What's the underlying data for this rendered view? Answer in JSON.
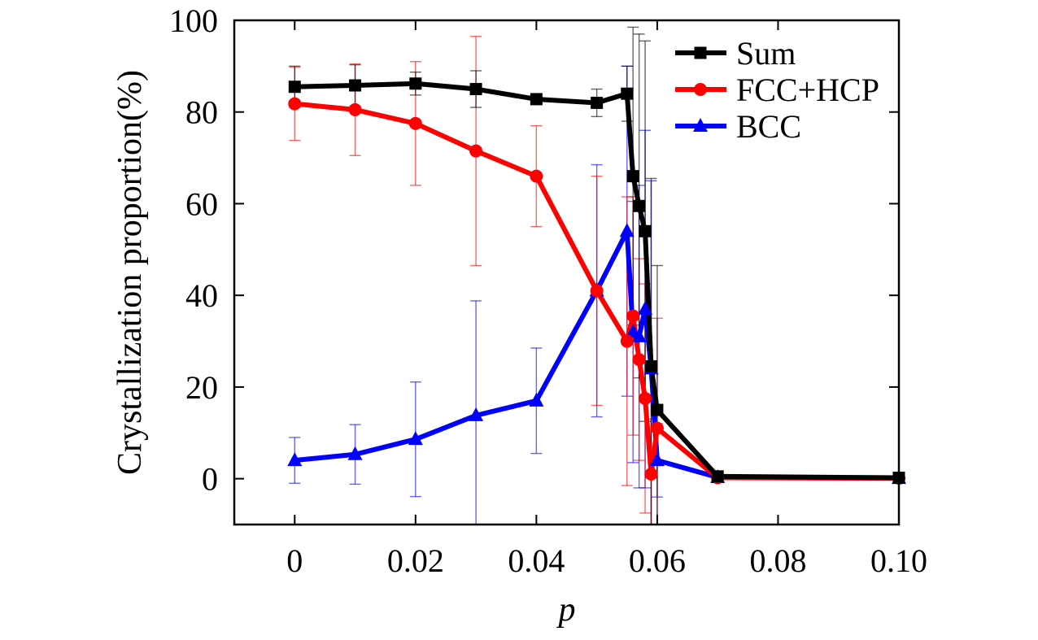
{
  "chart_data": {
    "type": "line",
    "title": "",
    "xlabel": "p",
    "ylabel": "Crystallization proportion(%)",
    "xlim": [
      -0.01,
      0.1
    ],
    "ylim": [
      -10,
      100
    ],
    "xticks": [
      0,
      0.02,
      0.04,
      0.06,
      0.08,
      0.1
    ],
    "xtick_labels": [
      "0",
      "0.02",
      "0.04",
      "0.06",
      "0.08",
      "0.10"
    ],
    "yticks": [
      0,
      20,
      40,
      60,
      80,
      100
    ],
    "ytick_labels": [
      "0",
      "20",
      "40",
      "60",
      "80",
      "100"
    ],
    "grid": false,
    "legend_position": "top-right",
    "series": [
      {
        "name": "Sum",
        "color": "#000000",
        "marker": "square",
        "x": [
          0,
          0.01,
          0.02,
          0.03,
          0.04,
          0.05,
          0.055,
          0.056,
          0.057,
          0.058,
          0.059,
          0.06,
          0.07,
          0.1
        ],
        "y": [
          85.5,
          85.8,
          86.2,
          85.0,
          82.8,
          82.0,
          84.0,
          66.0,
          59.5,
          54.0,
          24.5,
          15.0,
          0.5,
          0.2
        ],
        "err": [
          4.5,
          4.5,
          2.5,
          4.0,
          1.0,
          3.0,
          6.0,
          32.5,
          37.5,
          41.5,
          41.0,
          31.5,
          0.5,
          0.3
        ]
      },
      {
        "name": "FCC+HCP",
        "color": "#ff0000",
        "marker": "circle",
        "x": [
          0,
          0.01,
          0.02,
          0.03,
          0.04,
          0.05,
          0.055,
          0.056,
          0.057,
          0.058,
          0.059,
          0.06,
          0.07,
          0.1
        ],
        "y": [
          81.8,
          80.5,
          77.5,
          71.5,
          66.0,
          41.0,
          30.0,
          35.5,
          26.0,
          17.5,
          1.0,
          11.0,
          0.2,
          0.1
        ],
        "err": [
          8.0,
          10.0,
          13.5,
          25.0,
          11.0,
          25.0,
          31.5,
          26.0,
          22.0,
          25.0,
          12.0,
          24.0,
          0.3,
          0.2
        ]
      },
      {
        "name": "BCC",
        "color": "#0000ff",
        "marker": "triangle",
        "x": [
          0,
          0.01,
          0.02,
          0.03,
          0.04,
          0.05,
          0.055,
          0.056,
          0.057,
          0.058,
          0.059,
          0.06,
          0.07,
          0.1
        ],
        "y": [
          4.0,
          5.3,
          8.6,
          13.8,
          17.0,
          41.0,
          54.0,
          32.0,
          31.0,
          37.0,
          24.0,
          4.0,
          0.3,
          0.1
        ],
        "err": [
          5.0,
          6.5,
          12.5,
          25.0,
          11.5,
          27.5,
          36.0,
          28.5,
          33.0,
          39.0,
          41.0,
          8.0,
          0.3,
          0.2
        ]
      }
    ]
  }
}
